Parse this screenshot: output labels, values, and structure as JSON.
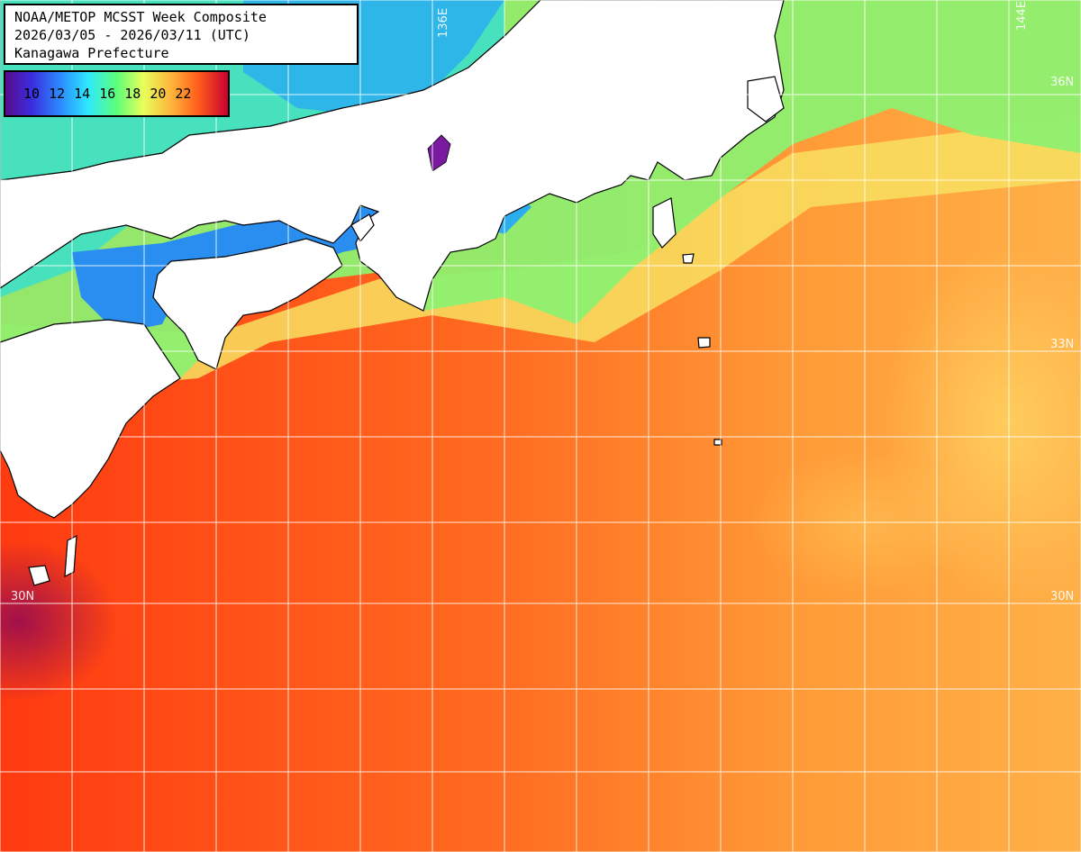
{
  "title": {
    "line1": "NOAA/METOP MCSST Week Composite",
    "line2": "2026/03/05 - 2026/03/11 (UTC)",
    "line3": "Kanagawa Prefecture"
  },
  "legend": {
    "labels": [
      "10",
      "12",
      "14",
      "16",
      "18",
      "20",
      "22"
    ],
    "colors": [
      "#5a0a8c",
      "#3a2ee0",
      "#2b8cff",
      "#2ee8ff",
      "#5cff7a",
      "#e8ff5a",
      "#ffb23a",
      "#ff5a1a",
      "#c80030"
    ]
  },
  "grid_labels": {
    "lon_136": "136E",
    "lon_144": "144E",
    "lat_36": "36N",
    "lat_33": "33N",
    "lat_30_left": "30N",
    "lat_30_right": "30N"
  },
  "colors": {
    "land": "#ffffff",
    "coast": "#000000",
    "grid": "#ffffff",
    "warm_sea": "#ff6a1c",
    "mid_sea": "#ffa040",
    "cool_sea": "#7df07a",
    "cold_sea": "#2ab8f0",
    "coldest_sea": "#6a1aa0"
  }
}
